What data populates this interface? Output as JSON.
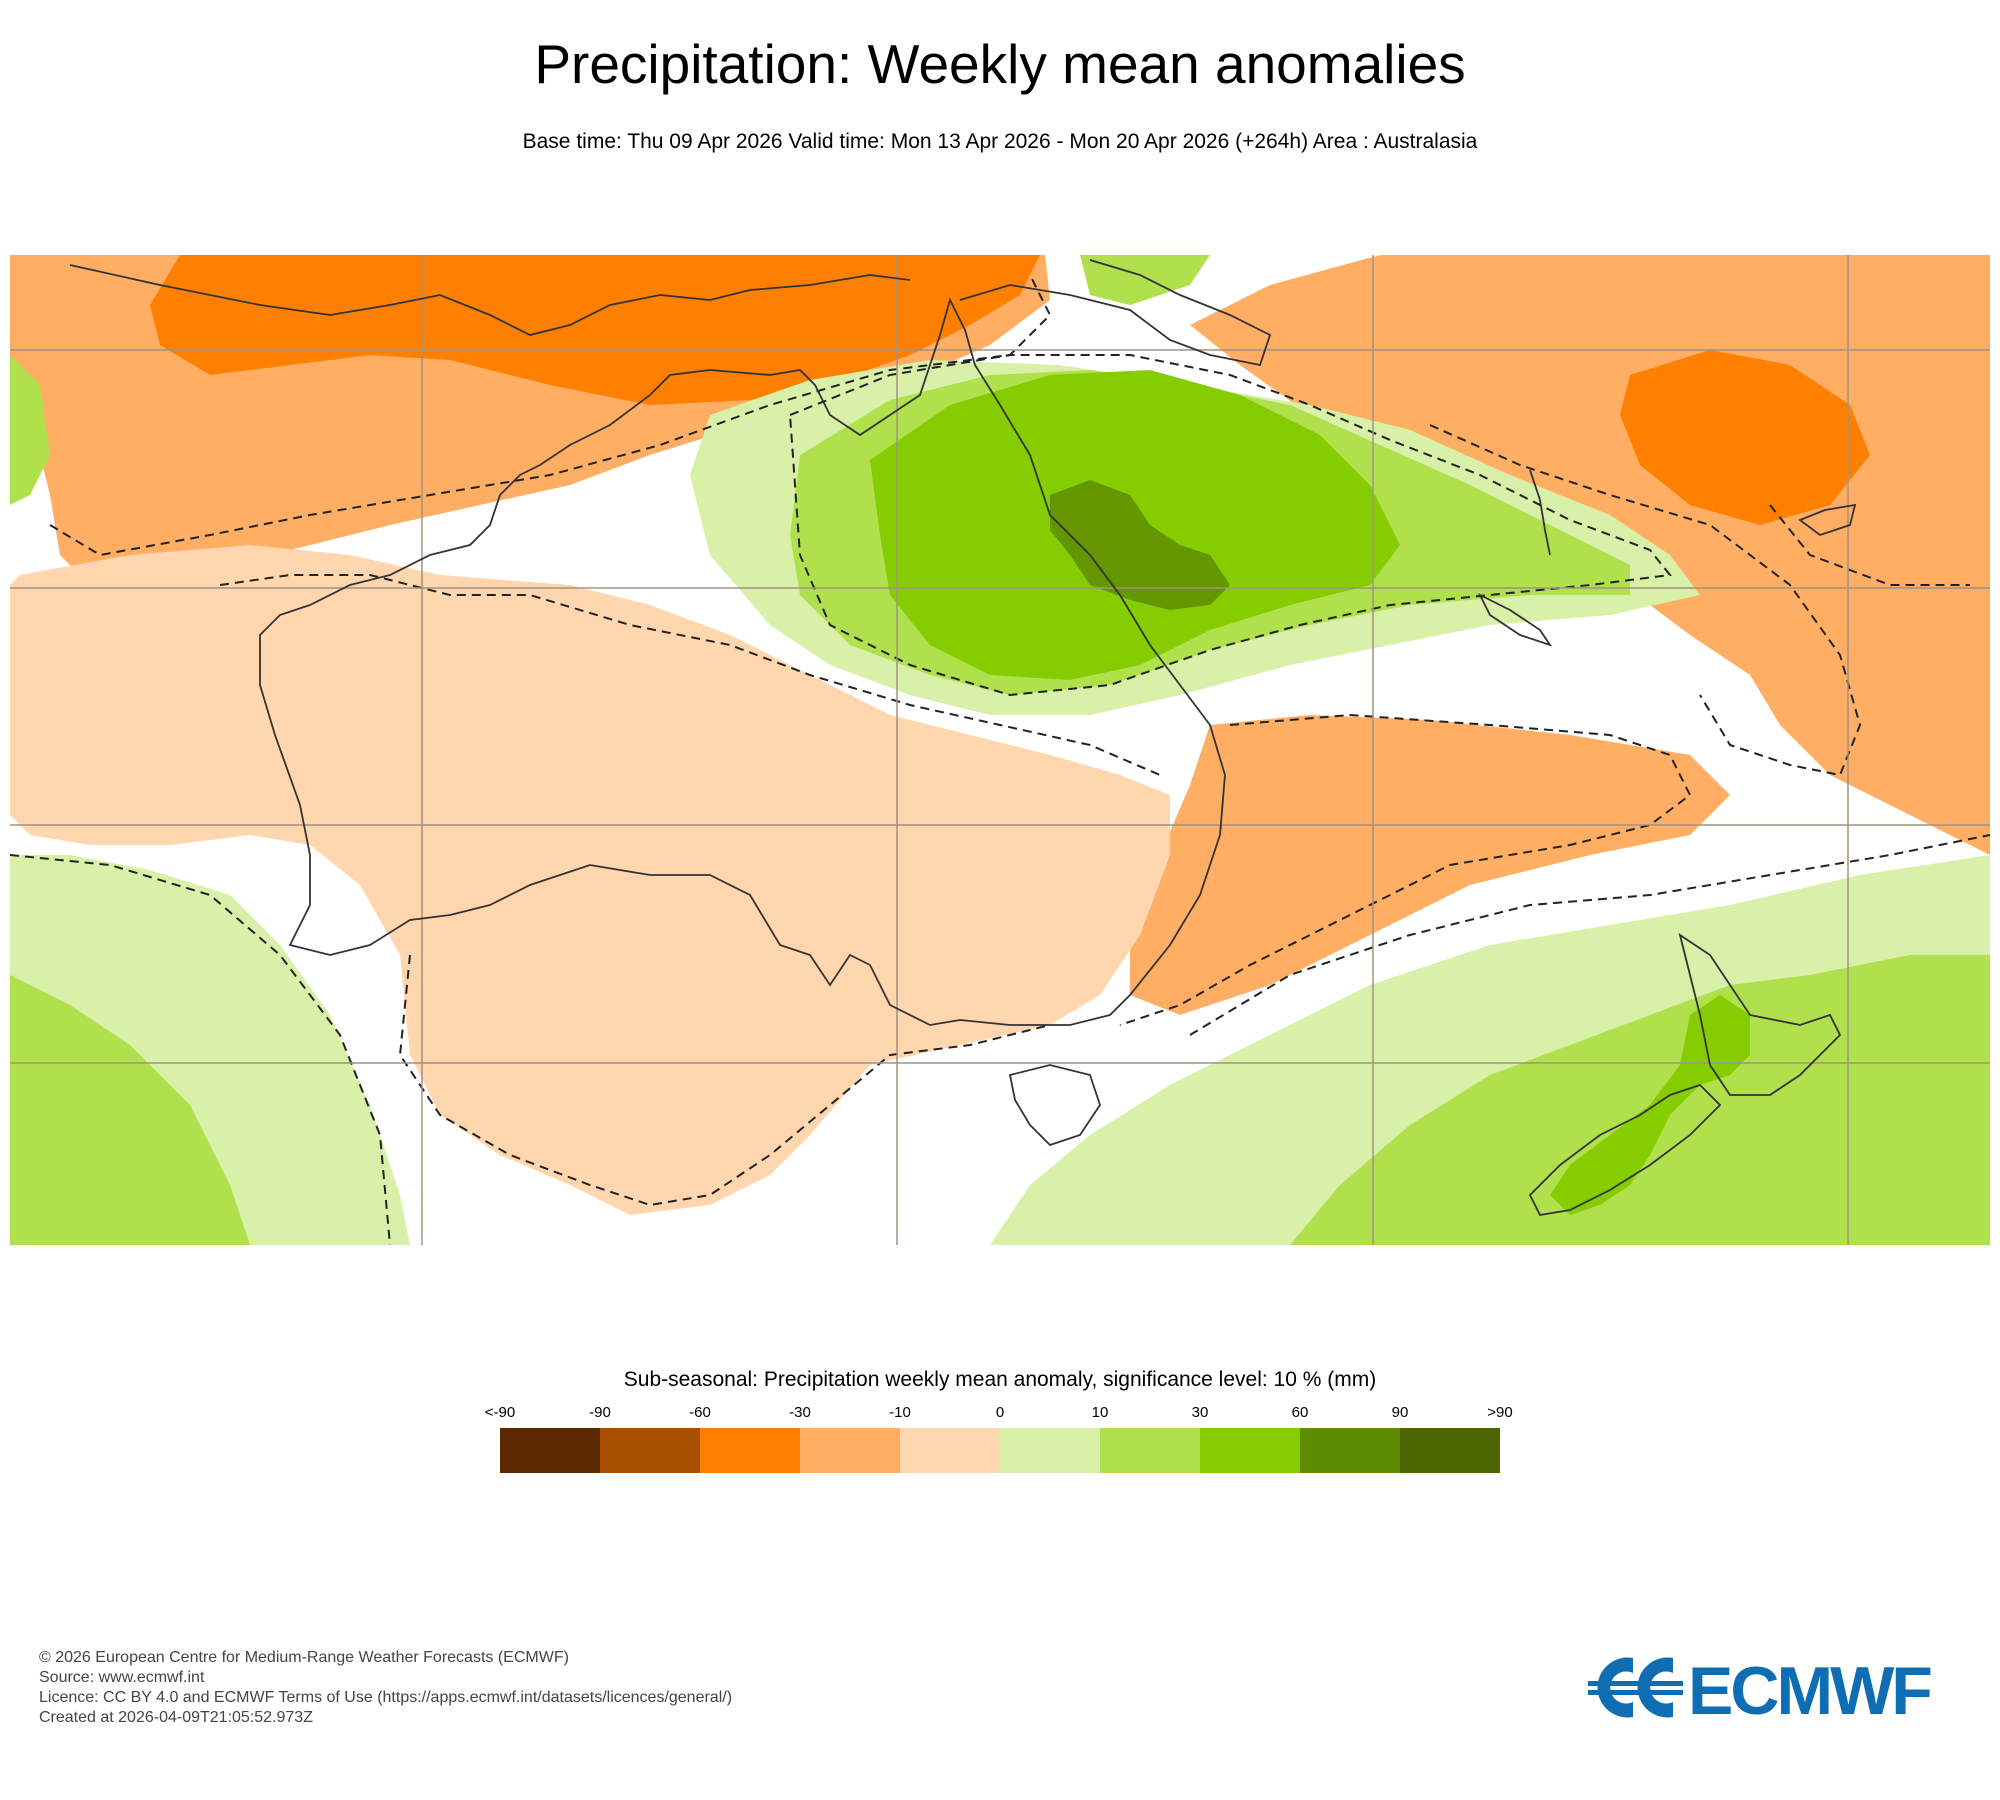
{
  "header": {
    "title": "Precipitation: Weekly mean anomalies",
    "subtitle": "Base time: Thu 09 Apr 2026 Valid time: Mon 13 Apr 2026 - Mon 20 Apr 2026 (+264h) Area : Australasia"
  },
  "legend": {
    "title": "Sub-seasonal: Precipitation weekly mean anomaly, significance level: 10 % (mm)",
    "ticks": [
      "<-90",
      "-90",
      "-60",
      "-30",
      "-10",
      "0",
      "10",
      "30",
      "60",
      "90",
      ">90"
    ],
    "colors": [
      "#5c2a00",
      "#a85000",
      "#ff7f00",
      "#ffae63",
      "#ffd6ae",
      "#d9f0a8",
      "#b0e04c",
      "#85cc00",
      "#5e8c00",
      "#4d6600"
    ]
  },
  "map": {
    "area": "Australasia",
    "significance_line": "dashed",
    "colors": {
      "ocean_neutral": "#ffffff",
      "grid": "#a09383",
      "coast": "#333333"
    }
  },
  "footer": {
    "lines": [
      "© 2026 European Centre for Medium-Range Weather Forecasts (ECMWF)",
      "Source: www.ecmwf.int",
      "Licence: CC BY 4.0 and ECMWF Terms of Use (https://apps.ecmwf.int/datasets/licences/general/)",
      "Created at 2026-04-09T21:05:52.973Z"
    ]
  },
  "logo": {
    "text": "ECMWF",
    "color": "#0f6db3"
  }
}
